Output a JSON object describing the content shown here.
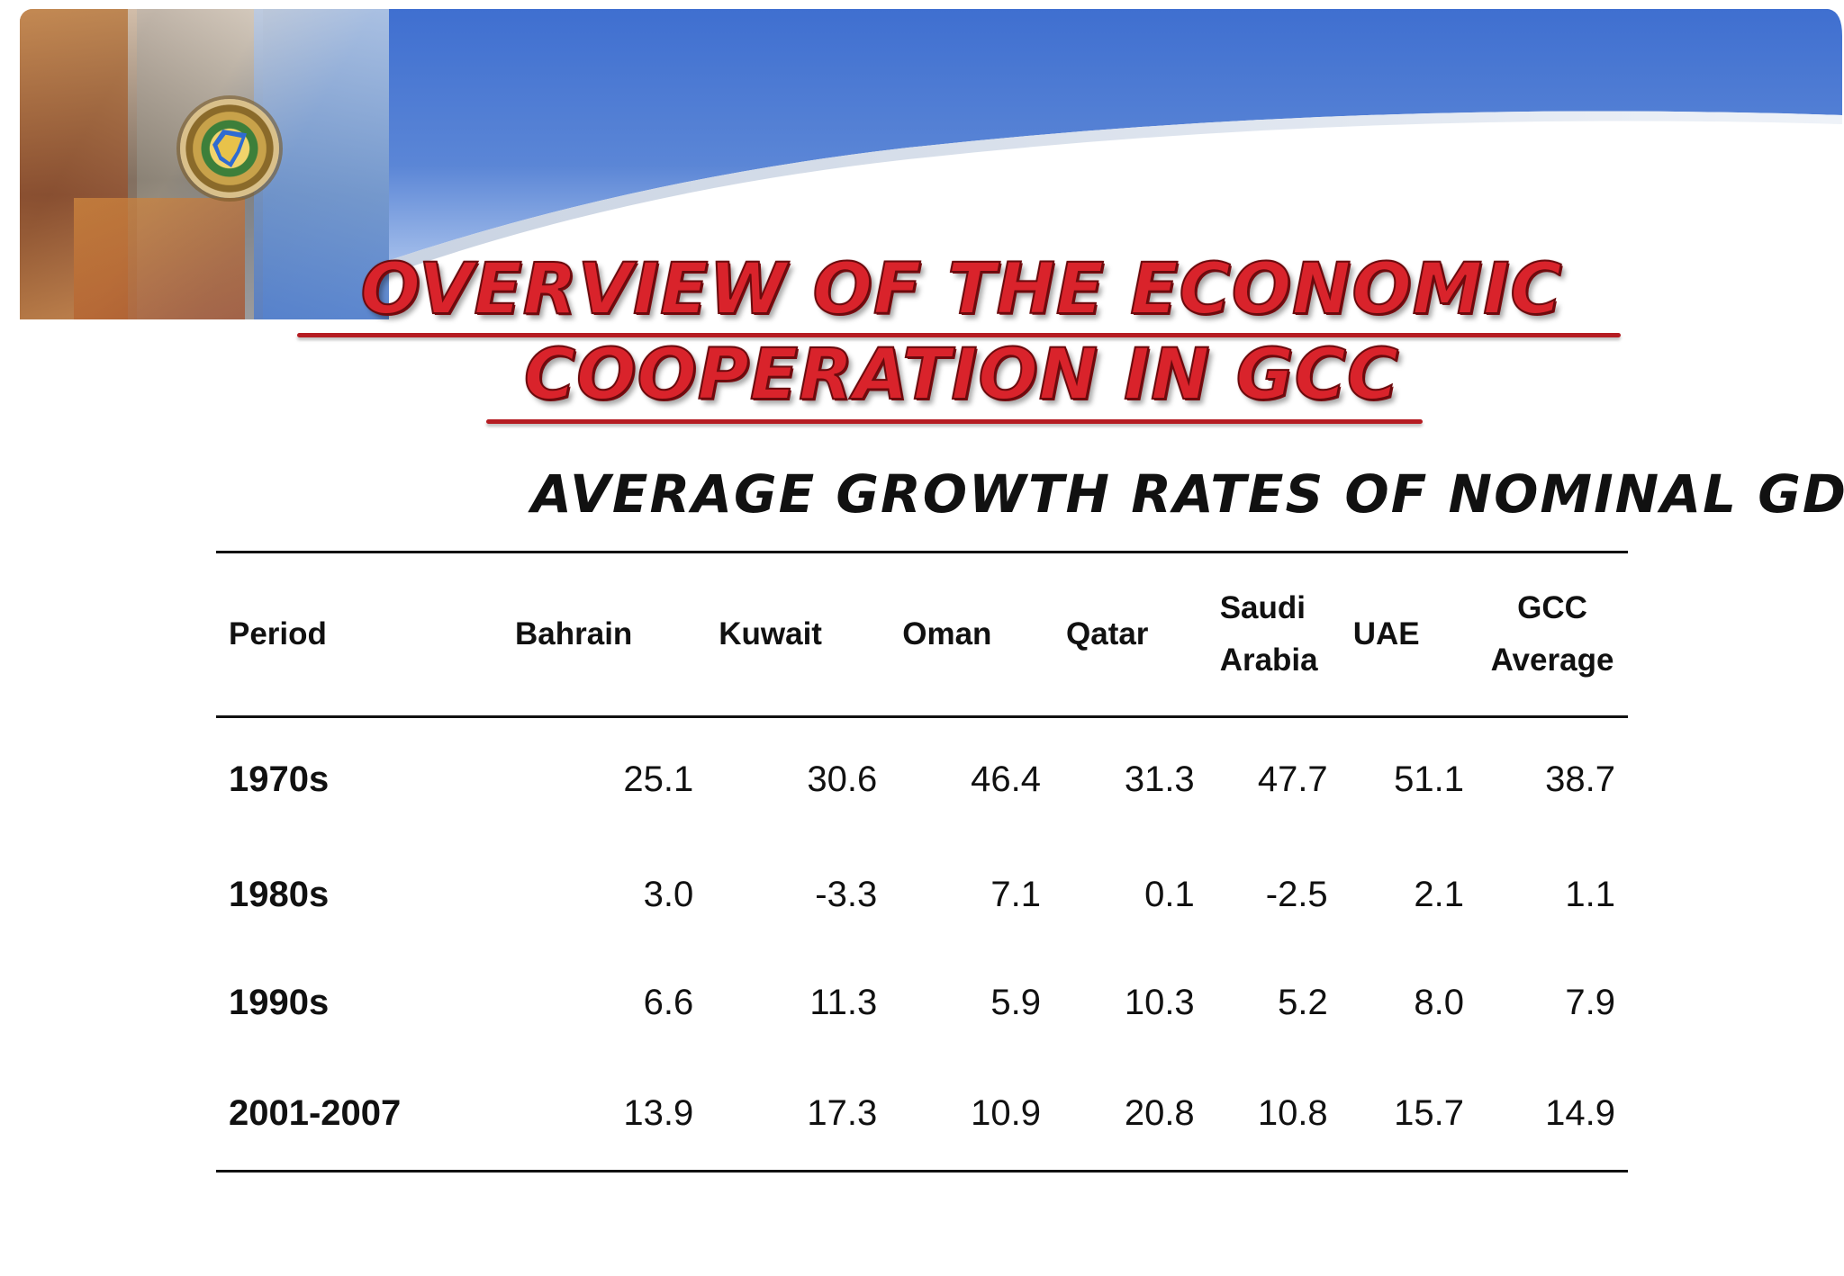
{
  "slide": {
    "title_line1": "Overview of the Economic",
    "title_line2": "Cooperation in GCC",
    "subtitle": "Average Growth Rates of Nominal GDP"
  },
  "table": {
    "headers": [
      "Period",
      "Bahrain",
      "Kuwait",
      "Oman",
      "Qatar",
      "Saudi Arabia",
      "UAE",
      "GCC Average"
    ],
    "rows": [
      [
        "1970s",
        "25.1",
        "30.6",
        "46.4",
        "31.3",
        "47.7",
        "51.1",
        "38.7"
      ],
      [
        "1980s",
        "3.0",
        "-3.3",
        "7.1",
        "0.1",
        "-2.5",
        "2.1",
        "1.1"
      ],
      [
        "1990s",
        "6.6",
        "11.3",
        "5.9",
        "10.3",
        "5.2",
        "8.0",
        "7.9"
      ],
      [
        "2001-2007",
        "13.9",
        "17.3",
        "10.9",
        "20.8",
        "10.8",
        "15.7",
        "14.9"
      ]
    ]
  },
  "colors": {
    "title_red": "#d9232b",
    "banner_blue": "#4c79c9",
    "text_dark": "#111111"
  }
}
